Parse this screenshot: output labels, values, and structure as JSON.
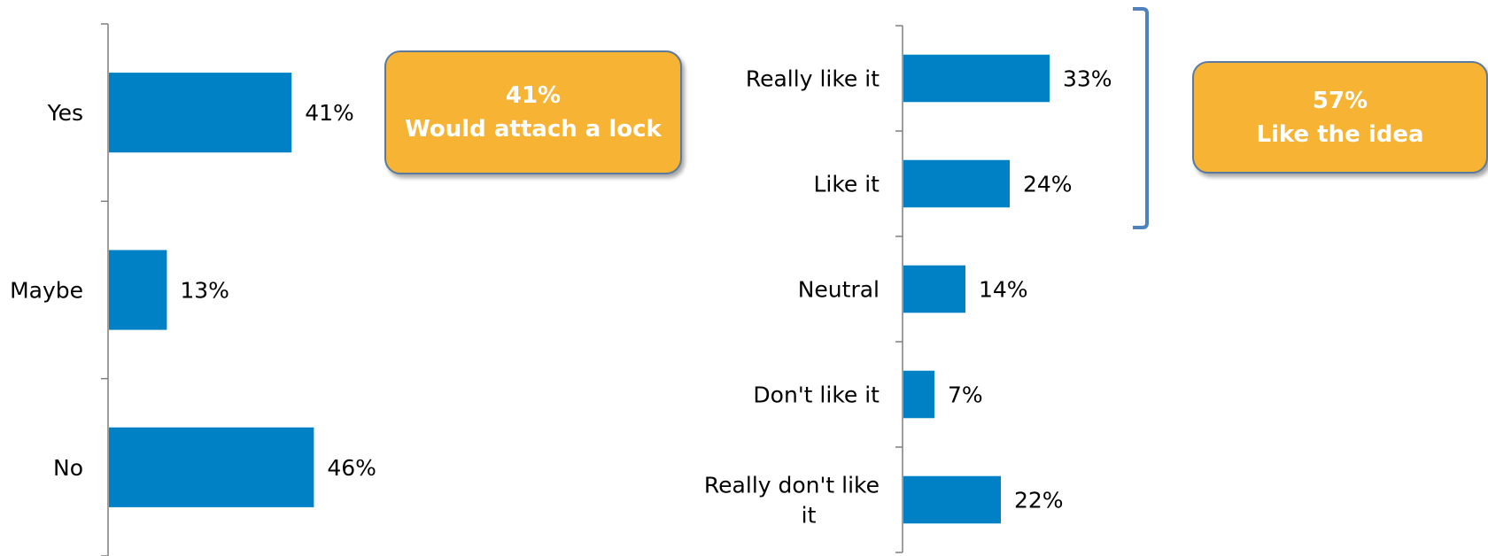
{
  "colors": {
    "bar": "#0081c6",
    "axis": "#7f7f7f",
    "callout_fill": "#f6b334",
    "callout_border": "#5a7aa0",
    "bracket": "#4f81bd",
    "text": "#000000"
  },
  "chart_data": [
    {
      "type": "bar",
      "orientation": "horizontal",
      "categories": [
        "Yes",
        "Maybe",
        "No"
      ],
      "values": [
        41,
        13,
        46
      ],
      "value_labels": [
        "41%",
        "13%",
        "46%"
      ],
      "unit": "%",
      "xlim": [
        0,
        100
      ],
      "grid": false,
      "legend": "none"
    },
    {
      "type": "bar",
      "orientation": "horizontal",
      "categories": [
        "Really like it",
        "Like it",
        "Neutral",
        "Don't like it",
        "Really don't like it"
      ],
      "values": [
        33,
        24,
        14,
        7,
        22
      ],
      "value_labels": [
        "33%",
        "24%",
        "14%",
        "7%",
        "22%"
      ],
      "unit": "%",
      "xlim": [
        0,
        100
      ],
      "grid": false,
      "legend": "none"
    }
  ],
  "annotations": {
    "left_callout": {
      "value": "41%",
      "text": "Would attach a lock"
    },
    "right_callout": {
      "value": "57%",
      "text": "Like the idea"
    }
  }
}
